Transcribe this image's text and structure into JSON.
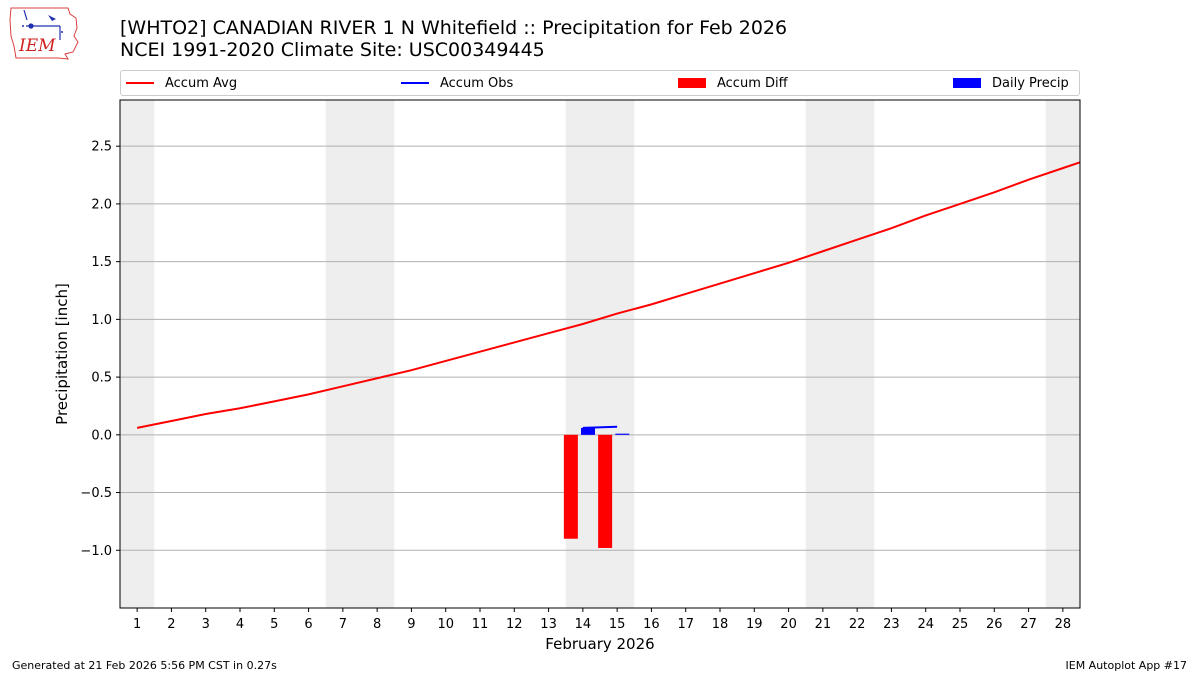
{
  "header": {
    "title_line1": "[WHTO2] CANADIAN RIVER 1 N Whitefield :: Precipitation for Feb 2026",
    "title_line2": "NCEI 1991-2020 Climate Site: USC00349445"
  },
  "logo": {
    "text": "IEM",
    "icon": "iem-logo-icon"
  },
  "footer": {
    "generated": "Generated at 21 Feb 2026 5:56 PM CST in 0.27s",
    "app": "IEM Autoplot App #17"
  },
  "colors": {
    "accum_avg": "#ff0000",
    "accum_obs": "#0000ff",
    "accum_diff": "#ff0000",
    "daily_precip": "#0000ff",
    "weekend_band": "#eeeeee",
    "grid": "#b0b0b0"
  },
  "chart_data": {
    "type": "bar",
    "xlabel": "February 2026",
    "ylabel": "Precipitation [inch]",
    "xlim": [
      0.5,
      28.5
    ],
    "ylim": [
      -1.5,
      2.9
    ],
    "x_ticks": [
      1,
      2,
      3,
      4,
      5,
      6,
      7,
      8,
      9,
      10,
      11,
      12,
      13,
      14,
      15,
      16,
      17,
      18,
      19,
      20,
      21,
      22,
      23,
      24,
      25,
      26,
      27,
      28
    ],
    "y_ticks": [
      -1.0,
      -0.5,
      0.0,
      0.5,
      1.0,
      1.5,
      2.0,
      2.5
    ],
    "y_tick_labels": [
      "−1.0",
      "−0.5",
      "0.0",
      "0.5",
      "1.0",
      "1.5",
      "2.0",
      "2.5"
    ],
    "grid": "horizontal",
    "legend_position": "top",
    "weekend_bands": [
      [
        0.5,
        1.5
      ],
      [
        6.5,
        8.5
      ],
      [
        13.5,
        15.5
      ],
      [
        20.5,
        22.5
      ],
      [
        27.5,
        28.5
      ]
    ],
    "legend": [
      "Accum Avg",
      "Accum Obs",
      "Accum Diff",
      "Daily Precip"
    ],
    "series": [
      {
        "name": "Accum Avg",
        "type": "line",
        "x": [
          1,
          2,
          3,
          4,
          5,
          6,
          7,
          8,
          9,
          10,
          11,
          12,
          13,
          14,
          15,
          16,
          17,
          18,
          19,
          20,
          21,
          22,
          23,
          24,
          25,
          26,
          27,
          28,
          28.5
        ],
        "values": [
          0.06,
          0.12,
          0.18,
          0.23,
          0.29,
          0.35,
          0.42,
          0.49,
          0.56,
          0.64,
          0.72,
          0.8,
          0.88,
          0.96,
          1.05,
          1.13,
          1.22,
          1.31,
          1.4,
          1.49,
          1.59,
          1.69,
          1.79,
          1.9,
          2.0,
          2.1,
          2.21,
          2.31,
          2.36
        ]
      },
      {
        "name": "Accum Obs",
        "type": "line",
        "x": [
          14,
          15
        ],
        "values": [
          0.06,
          0.07
        ]
      },
      {
        "name": "Accum Diff",
        "type": "bar",
        "x": [
          14,
          15
        ],
        "values": [
          -0.9,
          -0.98
        ]
      },
      {
        "name": "Daily Precip",
        "type": "bar",
        "x": [
          14,
          15
        ],
        "values": [
          0.06,
          0.01
        ]
      }
    ]
  }
}
